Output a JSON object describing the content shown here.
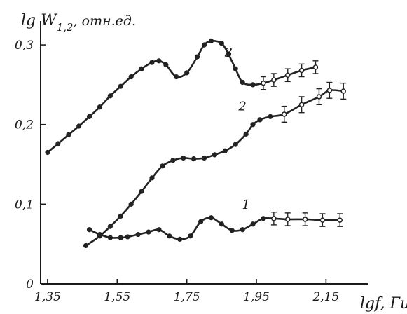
{
  "chart_data": {
    "type": "line",
    "ylabel": "lg W",
    "ylabel_sub": "1,2",
    "ylabel_unit": ", отн.ед.",
    "xlabel": "lgf, Гц",
    "xlim": [
      1.33,
      2.27
    ],
    "ylim": [
      0,
      0.33
    ],
    "x_ticks": [
      {
        "value": 1.35,
        "label": "1,35"
      },
      {
        "value": 1.55,
        "label": "1,55"
      },
      {
        "value": 1.75,
        "label": "1,75"
      },
      {
        "value": 1.95,
        "label": "1,95"
      },
      {
        "value": 2.15,
        "label": "2,15"
      }
    ],
    "y_ticks": [
      {
        "value": 0,
        "label": "0"
      },
      {
        "value": 0.1,
        "label": "0,1"
      },
      {
        "value": 0.2,
        "label": "0,2"
      },
      {
        "value": 0.3,
        "label": "0,3"
      }
    ],
    "grid": false,
    "series": [
      {
        "name": "1",
        "x": [
          1.47,
          1.5,
          1.53,
          1.56,
          1.58,
          1.61,
          1.64,
          1.67,
          1.7,
          1.73,
          1.76,
          1.79,
          1.82,
          1.85,
          1.88,
          1.91,
          1.94,
          1.97,
          2.0,
          2.04,
          2.09,
          2.14,
          2.19
        ],
        "y": [
          0.068,
          0.062,
          0.058,
          0.058,
          0.059,
          0.062,
          0.065,
          0.068,
          0.06,
          0.056,
          0.06,
          0.078,
          0.083,
          0.075,
          0.067,
          0.068,
          0.075,
          0.082,
          0.082,
          0.081,
          0.081,
          0.08,
          0.08
        ],
        "error_from_index": 18,
        "error": 0.008
      },
      {
        "name": "2",
        "x": [
          1.46,
          1.5,
          1.53,
          1.56,
          1.59,
          1.62,
          1.65,
          1.68,
          1.71,
          1.74,
          1.77,
          1.8,
          1.83,
          1.86,
          1.89,
          1.92,
          1.94,
          1.96,
          1.99,
          2.03,
          2.08,
          2.13,
          2.16,
          2.2
        ],
        "y": [
          0.048,
          0.06,
          0.072,
          0.085,
          0.1,
          0.116,
          0.133,
          0.148,
          0.155,
          0.158,
          0.157,
          0.158,
          0.162,
          0.167,
          0.175,
          0.188,
          0.2,
          0.206,
          0.21,
          0.213,
          0.225,
          0.235,
          0.243,
          0.242
        ],
        "error_from_index": 19,
        "error": 0.01
      },
      {
        "name": "3",
        "x": [
          1.35,
          1.38,
          1.41,
          1.44,
          1.47,
          1.5,
          1.53,
          1.56,
          1.59,
          1.62,
          1.65,
          1.67,
          1.69,
          1.72,
          1.75,
          1.78,
          1.8,
          1.82,
          1.85,
          1.87,
          1.89,
          1.91,
          1.94,
          1.97,
          2.0,
          2.04,
          2.08,
          2.12
        ],
        "y": [
          0.165,
          0.176,
          0.187,
          0.198,
          0.21,
          0.222,
          0.236,
          0.248,
          0.26,
          0.27,
          0.278,
          0.28,
          0.275,
          0.26,
          0.265,
          0.285,
          0.3,
          0.305,
          0.302,
          0.288,
          0.27,
          0.253,
          0.25,
          0.252,
          0.256,
          0.262,
          0.268,
          0.272
        ],
        "error_from_index": 23,
        "error": 0.008
      }
    ],
    "series_labels": [
      {
        "series": "1",
        "x": 1.92,
        "y": 0.094
      },
      {
        "series": "2",
        "x": 1.91,
        "y": 0.218
      },
      {
        "series": "3",
        "x": 1.87,
        "y": 0.285
      }
    ]
  }
}
